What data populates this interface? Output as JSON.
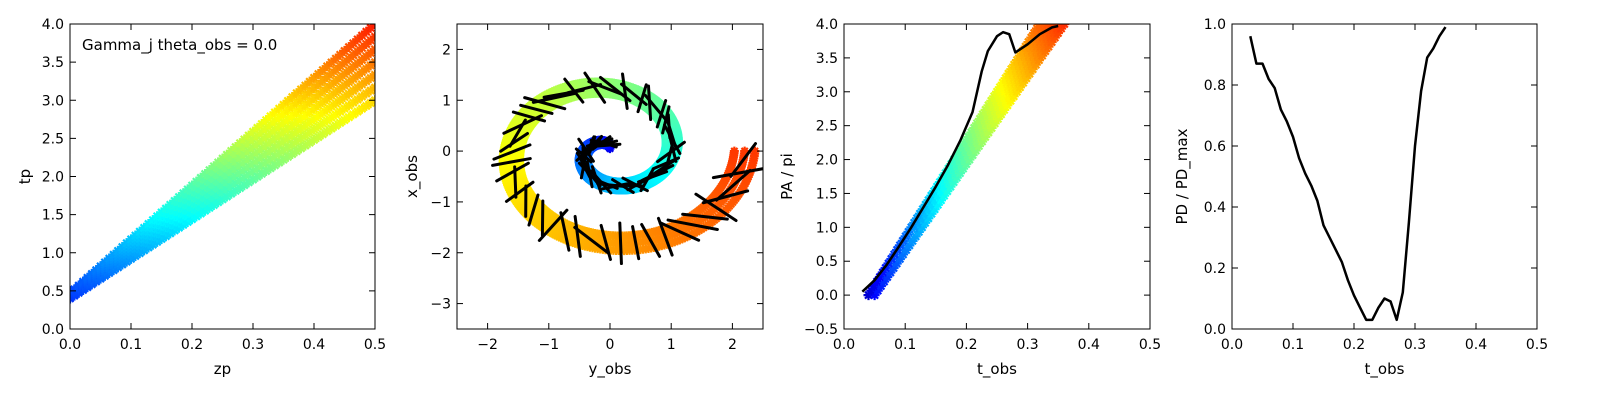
{
  "chart_data": [
    {
      "type": "scatter",
      "xlabel": "zp",
      "ylabel": "tp",
      "xlim": [
        0.0,
        0.5
      ],
      "ylim": [
        0.0,
        4.0
      ],
      "xticks": [
        "0.0",
        "0.1",
        "0.2",
        "0.3",
        "0.4",
        "0.5"
      ],
      "yticks": [
        "0.0",
        "0.5",
        "1.0",
        "1.5",
        "2.0",
        "2.5",
        "3.0",
        "3.5",
        "4.0"
      ],
      "annotation": "Gamma_j theta_obs = 0.0",
      "band": {
        "lower": [
          [
            0.0,
            0.4
          ],
          [
            0.5,
            3.0
          ]
        ],
        "upper": [
          [
            0.0,
            0.47
          ],
          [
            0.5,
            4.0
          ]
        ]
      },
      "colormap": "jet",
      "grid": false
    },
    {
      "type": "scatter",
      "xlabel": "y_obs",
      "ylabel": "x_obs",
      "xlim": [
        -2.5,
        2.5
      ],
      "ylim": [
        -3.5,
        2.5
      ],
      "xticks": [
        "−2",
        "−1",
        "0",
        "1",
        "2"
      ],
      "yticks": [
        "−3",
        "−2",
        "−1",
        "0",
        "1",
        "2"
      ],
      "spiral": {
        "turns": 1.75,
        "outer_radius": 2.2,
        "inner_radius": 0.1
      },
      "colormap": "jet",
      "grid": false
    },
    {
      "type": "line",
      "xlabel": "t_obs",
      "ylabel": "PA / pi",
      "xlim": [
        0.0,
        0.5
      ],
      "ylim": [
        -0.5,
        4.0
      ],
      "xticks": [
        "0.0",
        "0.1",
        "0.2",
        "0.3",
        "0.4",
        "0.5"
      ],
      "yticks": [
        "−0.5",
        "0.0",
        "0.5",
        "1.0",
        "1.5",
        "2.0",
        "2.5",
        "3.0",
        "3.5",
        "4.0"
      ],
      "band": {
        "left": [
          [
            0.04,
            0.0
          ],
          [
            0.32,
            4.0
          ]
        ],
        "right": [
          [
            0.05,
            0.0
          ],
          [
            0.36,
            4.0
          ]
        ]
      },
      "series": [
        {
          "x": [
            0.03,
            0.05,
            0.07,
            0.09,
            0.11,
            0.13,
            0.15,
            0.17,
            0.19,
            0.21,
            0.225,
            0.235,
            0.25,
            0.26,
            0.27,
            0.28,
            0.3,
            0.32,
            0.34,
            0.35
          ],
          "y": [
            0.05,
            0.22,
            0.45,
            0.72,
            1.0,
            1.3,
            1.6,
            1.92,
            2.28,
            2.7,
            3.3,
            3.6,
            3.82,
            3.88,
            3.85,
            3.58,
            3.7,
            3.85,
            3.95,
            3.97
          ]
        }
      ],
      "colormap": "jet",
      "grid": false
    },
    {
      "type": "line",
      "xlabel": "t_obs",
      "ylabel": "PD / PD_max",
      "xlim": [
        0.0,
        0.5
      ],
      "ylim": [
        0.0,
        1.0
      ],
      "xticks": [
        "0.0",
        "0.1",
        "0.2",
        "0.3",
        "0.4",
        "0.5"
      ],
      "yticks": [
        "0.0",
        "0.2",
        "0.4",
        "0.6",
        "0.8",
        "1.0"
      ],
      "series": [
        {
          "x": [
            0.03,
            0.04,
            0.05,
            0.06,
            0.07,
            0.08,
            0.09,
            0.1,
            0.11,
            0.12,
            0.13,
            0.14,
            0.15,
            0.16,
            0.17,
            0.18,
            0.19,
            0.2,
            0.21,
            0.22,
            0.23,
            0.24,
            0.25,
            0.26,
            0.27,
            0.28,
            0.29,
            0.3,
            0.31,
            0.32,
            0.33,
            0.34,
            0.35
          ],
          "y": [
            0.96,
            0.87,
            0.87,
            0.82,
            0.79,
            0.72,
            0.68,
            0.63,
            0.56,
            0.51,
            0.47,
            0.42,
            0.34,
            0.3,
            0.26,
            0.22,
            0.16,
            0.11,
            0.07,
            0.03,
            0.03,
            0.07,
            0.1,
            0.09,
            0.03,
            0.12,
            0.35,
            0.6,
            0.78,
            0.89,
            0.92,
            0.96,
            0.99
          ]
        }
      ],
      "grid": false
    }
  ]
}
